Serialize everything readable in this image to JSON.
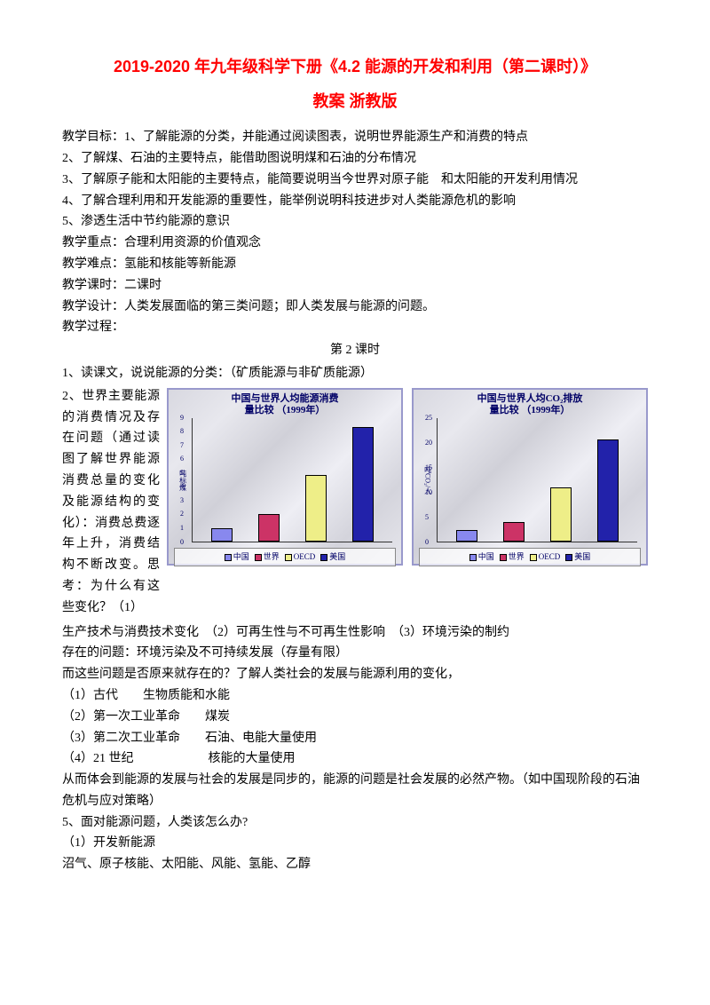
{
  "title_line1": "2019-2020 年九年级科学下册《4.2 能源的开发和利用（第二课时）》",
  "title_line2": "教案 浙教版",
  "lines_before": [
    "教学目标：1、了解能源的分类，并能通过阅读图表，说明世界能源生产和消费的特点",
    "2、了解煤、石油的主要特点，能借助图说明煤和石油的分布情况",
    "3、了解原子能和太阳能的主要特点，能简要说明当今世界对原子能　和太阳能的开发利用情况",
    "4、了解合理利用和开发能源的重要性，能举例说明科技进步对人类能源危机的影响",
    "5、渗透生活中节约能源的意识",
    "教学重点：合理利用资源的价值观念",
    "教学难点：氢能和核能等新能源",
    "教学课时：二课时",
    "教学设计：人类发展面临的第三类问题；即人类发展与能源的问题。",
    "教学过程："
  ],
  "lesson_header": "第 2 课时",
  "line_classify": "1、读课文，说说能源的分类：（矿质能源与非矿质能源）",
  "flow_lines": [
    "2、世界主要能源的消费情况及存在问题（通过读图了解世界能源消费总量的变化及能源结构的变化）：消费总费逐年上升，消费结构不断改变。思考：为什么有这些变化？（1）"
  ],
  "chart1": {
    "title_l1": "中国与世界人均能源消费",
    "title_l2": "量比较 （1999年）",
    "ylabel": "吨标煤",
    "ymax": 9,
    "ticks": [
      0,
      1,
      2,
      3,
      4,
      5,
      6,
      7,
      8,
      9
    ],
    "bars": [
      {
        "label": "中国",
        "value": 1.0,
        "color": "#8888ee"
      },
      {
        "label": "世界",
        "value": 2.0,
        "color": "#cc3366"
      },
      {
        "label": "OECD",
        "value": 4.8,
        "color": "#eeee88"
      },
      {
        "label": "美国",
        "value": 8.3,
        "color": "#2222aa"
      }
    ]
  },
  "chart2": {
    "title_l1": "中国与世界人均CO₂排放",
    "title_l2": "量比较 （1999年）",
    "ylabel": "吨CO₂/人",
    "ymax": 25,
    "ticks": [
      0,
      5,
      10,
      15,
      20,
      25
    ],
    "bars": [
      {
        "label": "中国",
        "value": 2.4,
        "color": "#8888ee"
      },
      {
        "label": "世界",
        "value": 3.9,
        "color": "#cc3366"
      },
      {
        "label": "OECD",
        "value": 11.0,
        "color": "#eeee88"
      },
      {
        "label": "美国",
        "value": 20.5,
        "color": "#2222aa"
      }
    ]
  },
  "legend_items": [
    "中国",
    "世界",
    "OECD",
    "美国"
  ],
  "legend_colors": [
    "#8888ee",
    "#cc3366",
    "#eeee88",
    "#2222aa"
  ],
  "lines_after": [
    "生产技术与消费技术变化　（2）可再生性与不可再生性影响　（3）环境污染的制约",
    "存在的问题：环境污染及不可持续发展（存量有限）",
    "而这些问题是否原来就存在的？了解人类社会的发展与能源利用的变化，",
    "（1）古代　　生物质能和水能",
    "（2）第一次工业革命　　煤炭",
    "（3）第二次工业革命　　石油、电能大量使用",
    "（4）21 世纪　　　　　　核能的大量使用",
    "从而体会到能源的发展与社会的发展是同步的，能源的问题是社会发展的必然产物。（如中国现阶段的石油危机与应对策略）",
    "5、面对能源问题，人类该怎么办?",
    "（1）开发新能源",
    "沼气、原子核能、太阳能、风能、氢能、乙醇"
  ]
}
